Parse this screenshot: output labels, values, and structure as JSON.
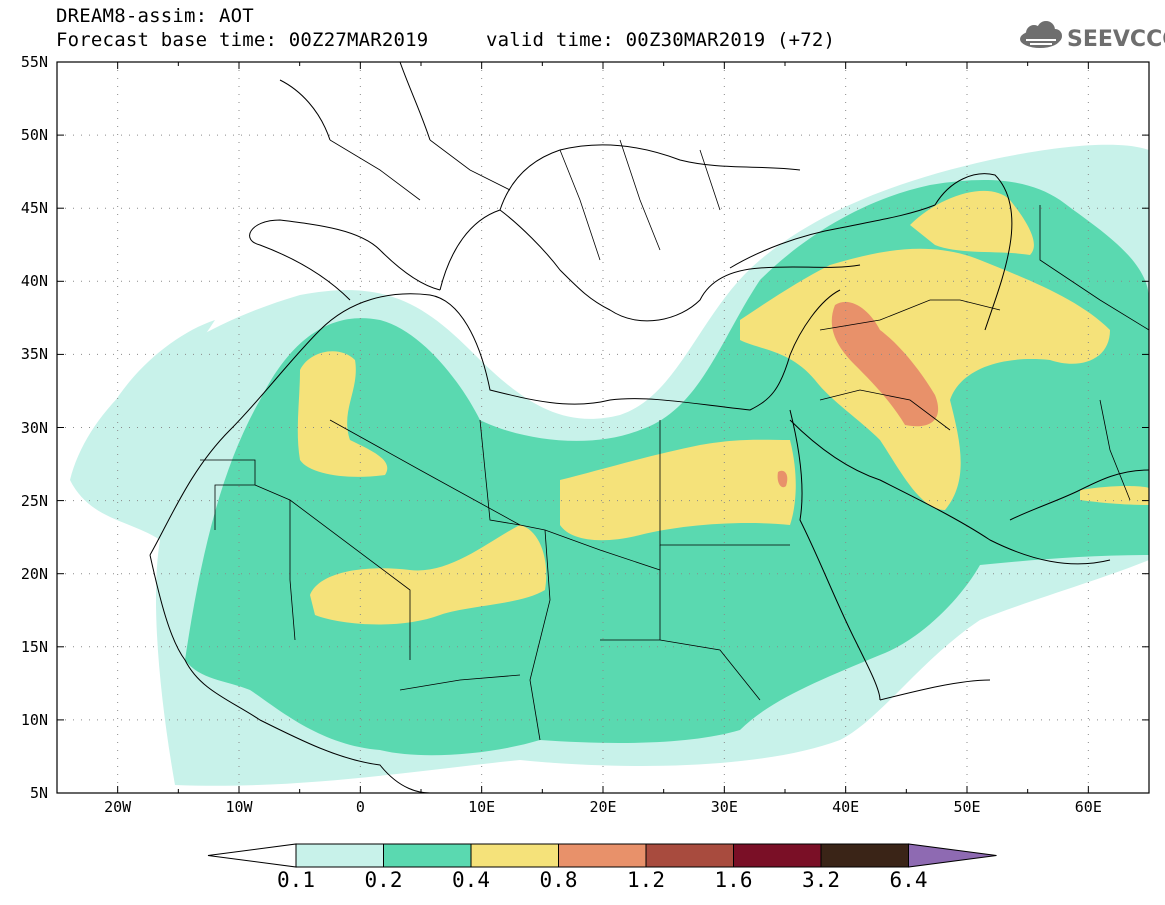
{
  "header": {
    "title": "DREAM8-assim: AOT",
    "base_time": "Forecast base time: 00Z27MAR2019",
    "valid_time": "valid time: 00Z30MAR2019 (+72)"
  },
  "logo": {
    "text": "SEEVCCC",
    "icon": "cloud-icon"
  },
  "map": {
    "lon_range": [
      -25,
      65
    ],
    "lat_range": [
      5,
      55
    ],
    "lat_ticks": [
      "55N",
      "50N",
      "45N",
      "40N",
      "35N",
      "30N",
      "25N",
      "20N",
      "15N",
      "10N",
      "5N"
    ],
    "lon_ticks": [
      "20W",
      "10W",
      "0",
      "10E",
      "20E",
      "30E",
      "40E",
      "50E",
      "60E"
    ],
    "grid": "dotted",
    "quantity": "aerosol optical thickness (AOT)"
  },
  "colorbar": {
    "labels": [
      "0.1",
      "0.2",
      "0.4",
      "0.8",
      "1.2",
      "1.6",
      "3.2",
      "6.4"
    ],
    "colors": [
      "#c8f2ea",
      "#5ad9b0",
      "#f5e27a",
      "#e8916a",
      "#a84b3e",
      "#7a0f26",
      "#3a2417",
      "#8e6ab2"
    ],
    "extend_low": "#ffffff"
  }
}
